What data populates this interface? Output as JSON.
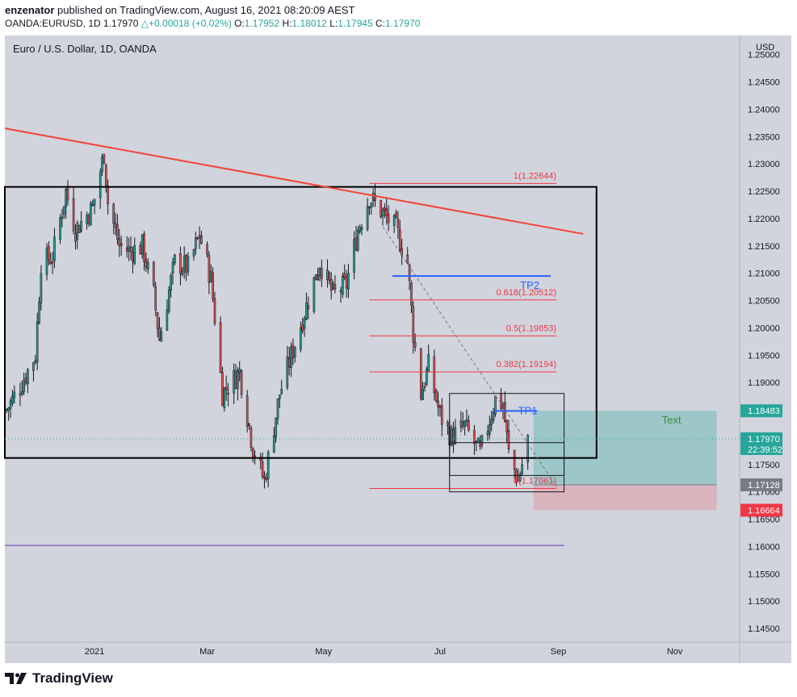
{
  "header": {
    "author": "enzenator",
    "published_text": "published on TradingView.com, August 16, 2021 08:20:09 AEST",
    "symbol": "OANDA:EURUSD, 1D",
    "last": "1.17970",
    "change": "+0.00018 (+0.02%)",
    "open_label": "O:",
    "open": "1.17952",
    "high_label": "H:",
    "high": "1.18012",
    "low_label": "L:",
    "low": "1.17945",
    "close_label": "C:",
    "close": "1.17970"
  },
  "footer": {
    "brand": "TradingView",
    "logo_icon": "tradingview-logo-icon"
  },
  "colors": {
    "background": "#d1d4dc",
    "up": "#26a69a",
    "down": "#ef5350",
    "wick": "#131722",
    "trendline": "#f44336",
    "fib": "#f23645",
    "tp": "#2962ff",
    "profit": "#26a69a",
    "loss": "#f7525f"
  },
  "chart_data": {
    "type": "candlestick",
    "title": "Euro / U.S. Dollar, 1D, OANDA",
    "ylabel": "USD",
    "ylim": [
      1.1425,
      1.2535
    ],
    "yticks": [
      "1.25000",
      "1.24500",
      "1.24000",
      "1.23500",
      "1.23000",
      "1.22500",
      "1.22000",
      "1.21500",
      "1.21000",
      "1.20500",
      "1.20000",
      "1.19500",
      "1.19000",
      "1.18500",
      "1.18000",
      "1.17500",
      "1.17000",
      "1.16500",
      "1.16000",
      "1.15500",
      "1.15000",
      "1.14500"
    ],
    "ytick_values": [
      1.25,
      1.245,
      1.24,
      1.235,
      1.23,
      1.225,
      1.22,
      1.215,
      1.21,
      1.205,
      1.2,
      1.195,
      1.19,
      1.185,
      1.18,
      1.175,
      1.17,
      1.165,
      1.16,
      1.155,
      1.15,
      1.145
    ],
    "xlim": [
      "2020-11-15",
      "2021-12-05"
    ],
    "xticks": [
      {
        "label": "2021",
        "date": "2021-01-01"
      },
      {
        "label": "Mar",
        "date": "2021-03-01"
      },
      {
        "label": "May",
        "date": "2021-05-01"
      },
      {
        "label": "Jul",
        "date": "2021-07-01"
      },
      {
        "label": "Sep",
        "date": "2021-09-01"
      },
      {
        "label": "Nov",
        "date": "2021-11-01"
      }
    ],
    "price_path": [
      [
        "2020-11-16",
        1.185
      ],
      [
        "2020-11-24",
        1.19
      ],
      [
        "2020-12-01",
        1.195
      ],
      [
        "2020-12-04",
        1.212
      ],
      [
        "2020-12-10",
        1.213
      ],
      [
        "2020-12-17",
        1.225
      ],
      [
        "2020-12-22",
        1.218
      ],
      [
        "2020-12-31",
        1.222
      ],
      [
        "2021-01-06",
        1.232
      ],
      [
        "2021-01-08",
        1.223
      ],
      [
        "2021-01-14",
        1.215
      ],
      [
        "2021-01-20",
        1.214
      ],
      [
        "2021-01-26",
        1.215
      ],
      [
        "2021-02-01",
        1.206
      ],
      [
        "2021-02-04",
        1.198
      ],
      [
        "2021-02-12",
        1.212
      ],
      [
        "2021-02-19",
        1.211
      ],
      [
        "2021-02-25",
        1.217
      ],
      [
        "2021-03-03",
        1.209
      ],
      [
        "2021-03-09",
        1.188
      ],
      [
        "2021-03-18",
        1.192
      ],
      [
        "2021-03-25",
        1.178
      ],
      [
        "2021-03-31",
        1.172
      ],
      [
        "2021-04-08",
        1.188
      ],
      [
        "2021-04-15",
        1.196
      ],
      [
        "2021-04-22",
        1.204
      ],
      [
        "2021-04-29",
        1.212
      ],
      [
        "2021-05-06",
        1.206
      ],
      [
        "2021-05-13",
        1.208
      ],
      [
        "2021-05-19",
        1.218
      ],
      [
        "2021-05-25",
        1.224
      ],
      [
        "2021-06-01",
        1.221
      ],
      [
        "2021-06-08",
        1.218
      ],
      [
        "2021-06-14",
        1.212
      ],
      [
        "2021-06-17",
        1.199
      ],
      [
        "2021-06-21",
        1.188
      ],
      [
        "2021-06-25",
        1.193
      ],
      [
        "2021-07-01",
        1.184
      ],
      [
        "2021-07-07",
        1.18
      ],
      [
        "2021-07-14",
        1.182
      ],
      [
        "2021-07-22",
        1.177
      ],
      [
        "2021-07-30",
        1.187
      ],
      [
        "2021-08-03",
        1.186
      ],
      [
        "2021-08-06",
        1.177
      ],
      [
        "2021-08-11",
        1.172
      ],
      [
        "2021-08-16",
        1.1797
      ]
    ],
    "drawings": {
      "range_box": {
        "from": "2020-11-15",
        "to": "2021-09-21",
        "high": 1.2258,
        "low": 1.1762
      },
      "trendline": {
        "from": [
          "2020-11-15",
          1.2365
        ],
        "to": [
          "2021-09-14",
          1.2172
        ]
      },
      "fibonacci": {
        "from": "2021-05-25",
        "to": "2021-08-31",
        "levels": [
          {
            "label": "1(1.22644)",
            "value": 1.22644
          },
          {
            "label": "0.618(1.20512)",
            "value": 1.20512
          },
          {
            "label": "0.5(1.19853)",
            "value": 1.19853
          },
          {
            "label": "0.382(1.19194)",
            "value": 1.19194
          },
          {
            "label": "0(1.17061)",
            "value": 1.17061
          }
        ]
      },
      "fib_trend_line": {
        "from": [
          "2021-06-01",
          1.2185
        ],
        "to": [
          "2021-08-31",
          1.171
        ]
      },
      "targets": [
        {
          "label": "TP2",
          "value": 1.2095,
          "from": "2021-06-06",
          "to": "2021-08-28"
        },
        {
          "label": "TP1",
          "value": 1.1848,
          "from": "2021-07-29",
          "to": "2021-08-21"
        }
      ],
      "boxes": [
        {
          "from": "2021-07-06",
          "to": "2021-09-04",
          "high": 1.188,
          "low": 1.173
        },
        {
          "from": "2021-07-06",
          "to": "2021-09-04",
          "high": 1.179,
          "low": 1.17
        }
      ],
      "position": {
        "from": "2021-08-19",
        "to": "2021-11-23",
        "target": 1.18483,
        "entry": 1.17128,
        "stop": 1.16664,
        "text": "Text"
      },
      "lower_line": {
        "from": "2020-11-15",
        "to": "2021-09-04",
        "value": 1.1602
      }
    },
    "price_labels": [
      {
        "value": 1.18483,
        "text": "1.18483",
        "color": "#26a69a"
      },
      {
        "value": 1.1797,
        "text": "1.17970",
        "sub": "22:39:52",
        "color": "#26a69a"
      },
      {
        "value": 1.17128,
        "text": "1.17128",
        "color": "#787b86"
      },
      {
        "value": 1.16664,
        "text": "1.16664",
        "color": "#f23645"
      }
    ]
  }
}
